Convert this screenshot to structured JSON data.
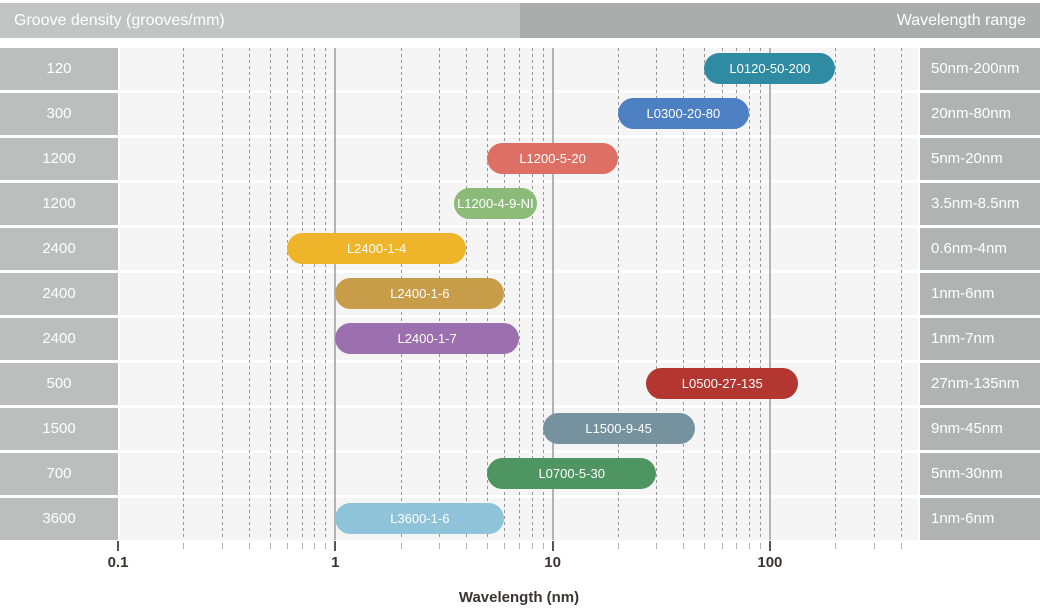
{
  "header": {
    "left_title": "Groove density (grooves/mm)",
    "right_title": "Wavelength range"
  },
  "chart_data": {
    "type": "bar",
    "subtype": "horizontal-log-range",
    "x_scale": "log",
    "x_axis_ticks": [
      "0.1",
      "1",
      "10",
      "100"
    ],
    "x_range_nm": [
      0.1,
      500
    ],
    "xlabel": "Wavelength (nm)",
    "left_column_header": "Groove density (grooves/mm)",
    "right_column_header": "Wavelength range",
    "rows": [
      {
        "groove_density": "120",
        "model": "L0120-50-200",
        "range_label": "50nm-200nm",
        "min_nm": 50,
        "max_nm": 200,
        "color": "#2e8ba2"
      },
      {
        "groove_density": "300",
        "model": "L0300-20-80",
        "range_label": "20nm-80nm",
        "min_nm": 20,
        "max_nm": 80,
        "color": "#4c80c2"
      },
      {
        "groove_density": "1200",
        "model": "L1200-5-20",
        "range_label": "5nm-20nm",
        "min_nm": 5,
        "max_nm": 20,
        "color": "#de6f64"
      },
      {
        "groove_density": "1200",
        "model": "L1200-4-9-NI",
        "range_label": "3.5nm-8.5nm",
        "min_nm": 3.5,
        "max_nm": 8.5,
        "color": "#8cba78"
      },
      {
        "groove_density": "2400",
        "model": "L2400-1-4",
        "range_label": "0.6nm-4nm",
        "min_nm": 0.6,
        "max_nm": 4,
        "color": "#eeb42a"
      },
      {
        "groove_density": "2400",
        "model": "L2400-1-6",
        "range_label": "1nm-6nm",
        "min_nm": 1,
        "max_nm": 6,
        "color": "#c89d49"
      },
      {
        "groove_density": "2400",
        "model": "L2400-1-7",
        "range_label": "1nm-7nm",
        "min_nm": 1,
        "max_nm": 7,
        "color": "#9c6fae"
      },
      {
        "groove_density": "500",
        "model": "L0500-27-135",
        "range_label": "27nm-135nm",
        "min_nm": 27,
        "max_nm": 135,
        "color": "#b33631"
      },
      {
        "groove_density": "1500",
        "model": "L1500-9-45",
        "range_label": "9nm-45nm",
        "min_nm": 9,
        "max_nm": 45,
        "color": "#76929f"
      },
      {
        "groove_density": "700",
        "model": "L0700-5-30",
        "range_label": "5nm-30nm",
        "min_nm": 5,
        "max_nm": 30,
        "color": "#4f9562"
      },
      {
        "groove_density": "3600",
        "model": "L3600-1-6",
        "range_label": "1nm-6nm",
        "min_nm": 1,
        "max_nm": 6,
        "color": "#8ec3da"
      }
    ]
  }
}
